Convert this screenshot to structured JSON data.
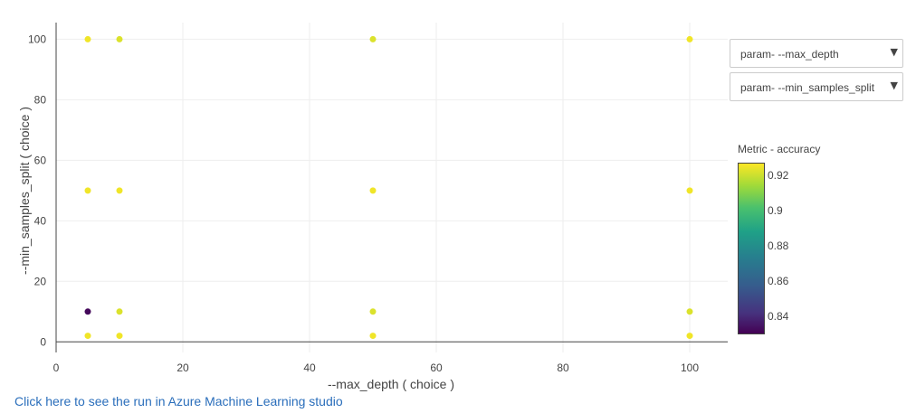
{
  "chart_data": {
    "type": "scatter",
    "xlabel": "--max_depth ( choice )",
    "ylabel": "--min_samples_split ( choice )",
    "xlim": [
      0,
      106
    ],
    "ylim": [
      -3.5,
      105.5
    ],
    "xticks": [
      0,
      20,
      40,
      60,
      80,
      100
    ],
    "yticks": [
      0,
      20,
      40,
      60,
      80,
      100
    ],
    "grid": true,
    "points": [
      {
        "x": 5,
        "y": 100,
        "accuracy": 0.925
      },
      {
        "x": 10,
        "y": 100,
        "accuracy": 0.922
      },
      {
        "x": 50,
        "y": 100,
        "accuracy": 0.922
      },
      {
        "x": 100,
        "y": 100,
        "accuracy": 0.925
      },
      {
        "x": 5,
        "y": 50,
        "accuracy": 0.925
      },
      {
        "x": 10,
        "y": 50,
        "accuracy": 0.925
      },
      {
        "x": 50,
        "y": 50,
        "accuracy": 0.925
      },
      {
        "x": 100,
        "y": 50,
        "accuracy": 0.925
      },
      {
        "x": 5,
        "y": 10,
        "accuracy": 0.832
      },
      {
        "x": 10,
        "y": 10,
        "accuracy": 0.922
      },
      {
        "x": 50,
        "y": 10,
        "accuracy": 0.922
      },
      {
        "x": 100,
        "y": 10,
        "accuracy": 0.922
      },
      {
        "x": 5,
        "y": 2,
        "accuracy": 0.925
      },
      {
        "x": 10,
        "y": 2,
        "accuracy": 0.925
      },
      {
        "x": 50,
        "y": 2,
        "accuracy": 0.925
      },
      {
        "x": 100,
        "y": 2,
        "accuracy": 0.925
      }
    ],
    "colorbar": {
      "title": "Metric - accuracy",
      "range": [
        0.83,
        0.927
      ],
      "ticks": [
        0.84,
        0.86,
        0.88,
        0.9,
        0.92
      ],
      "tick_labels": [
        "0.84",
        "0.86",
        "0.88",
        "0.9",
        "0.92"
      ],
      "colorscale": [
        "#440154",
        "#46327e",
        "#365c8d",
        "#277f8e",
        "#1fa187",
        "#4ac16d",
        "#a0da39",
        "#fde725"
      ]
    }
  },
  "controls": {
    "x_dropdown_label": "param- --max_depth",
    "y_dropdown_label": "param- --min_samples_split",
    "dropdown_arrow": "▼"
  },
  "link": {
    "text": "Click here to see the run in Azure Machine Learning studio"
  },
  "colors": {
    "grid": "#eeeeee",
    "axis": "#444444",
    "link": "#2a6ebb"
  }
}
